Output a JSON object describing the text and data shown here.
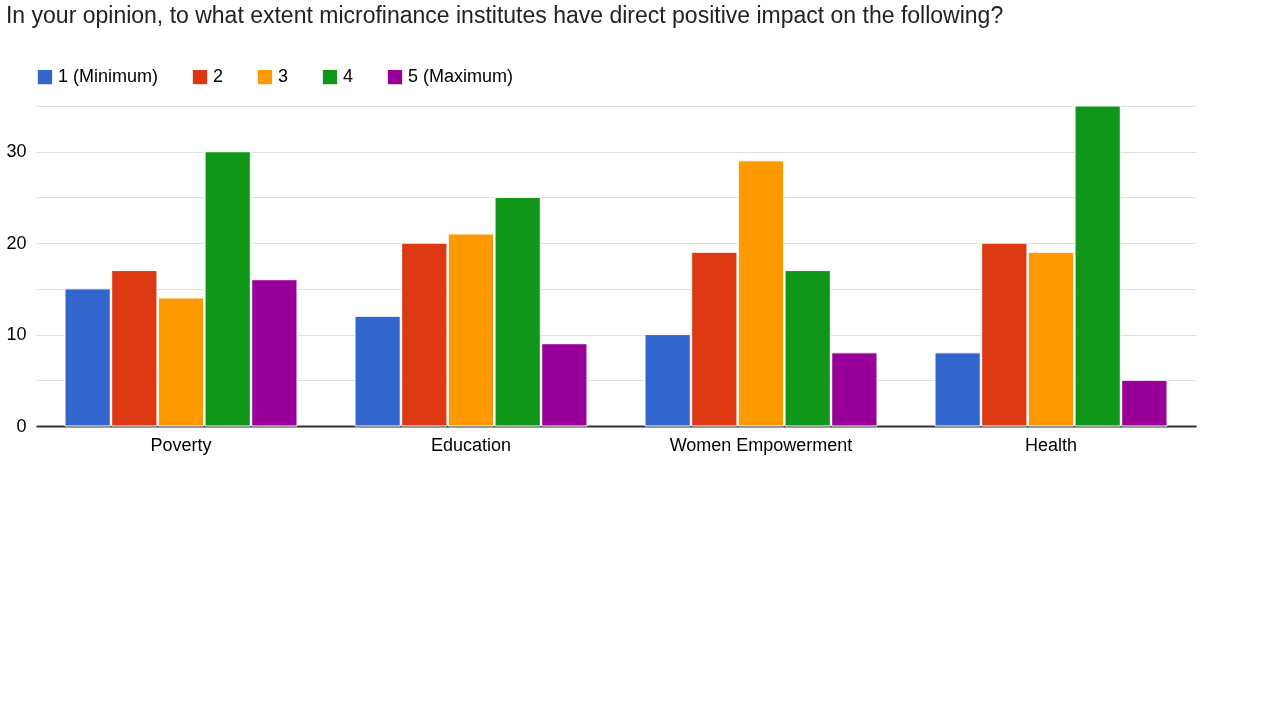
{
  "chart_data": {
    "type": "bar",
    "title": "In your opinion, to what extent microfinance institutes have direct positive impact on the following?",
    "categories": [
      "Poverty",
      "Education",
      "Women Empowerment",
      "Health"
    ],
    "series": [
      {
        "name": "1 (Minimum)",
        "color": "#3366cc",
        "values": [
          15,
          12,
          10,
          8
        ]
      },
      {
        "name": "2",
        "color": "#dc3912",
        "values": [
          17,
          20,
          19,
          20
        ]
      },
      {
        "name": "3",
        "color": "#ff9900",
        "values": [
          14,
          21,
          29,
          19
        ]
      },
      {
        "name": "4",
        "color": "#109618",
        "values": [
          30,
          25,
          17,
          35
        ]
      },
      {
        "name": "5 (Maximum)",
        "color": "#990099",
        "values": [
          16,
          9,
          8,
          5
        ]
      }
    ],
    "ylim": [
      0,
      35
    ],
    "yticks": [
      0,
      {
        "value": 5,
        "label": null
      },
      10,
      {
        "value": 15,
        "label": null
      },
      20,
      {
        "value": 25,
        "label": null
      },
      30,
      {
        "value": 35,
        "label": null
      }
    ],
    "grid": "y",
    "legend": "top left"
  }
}
